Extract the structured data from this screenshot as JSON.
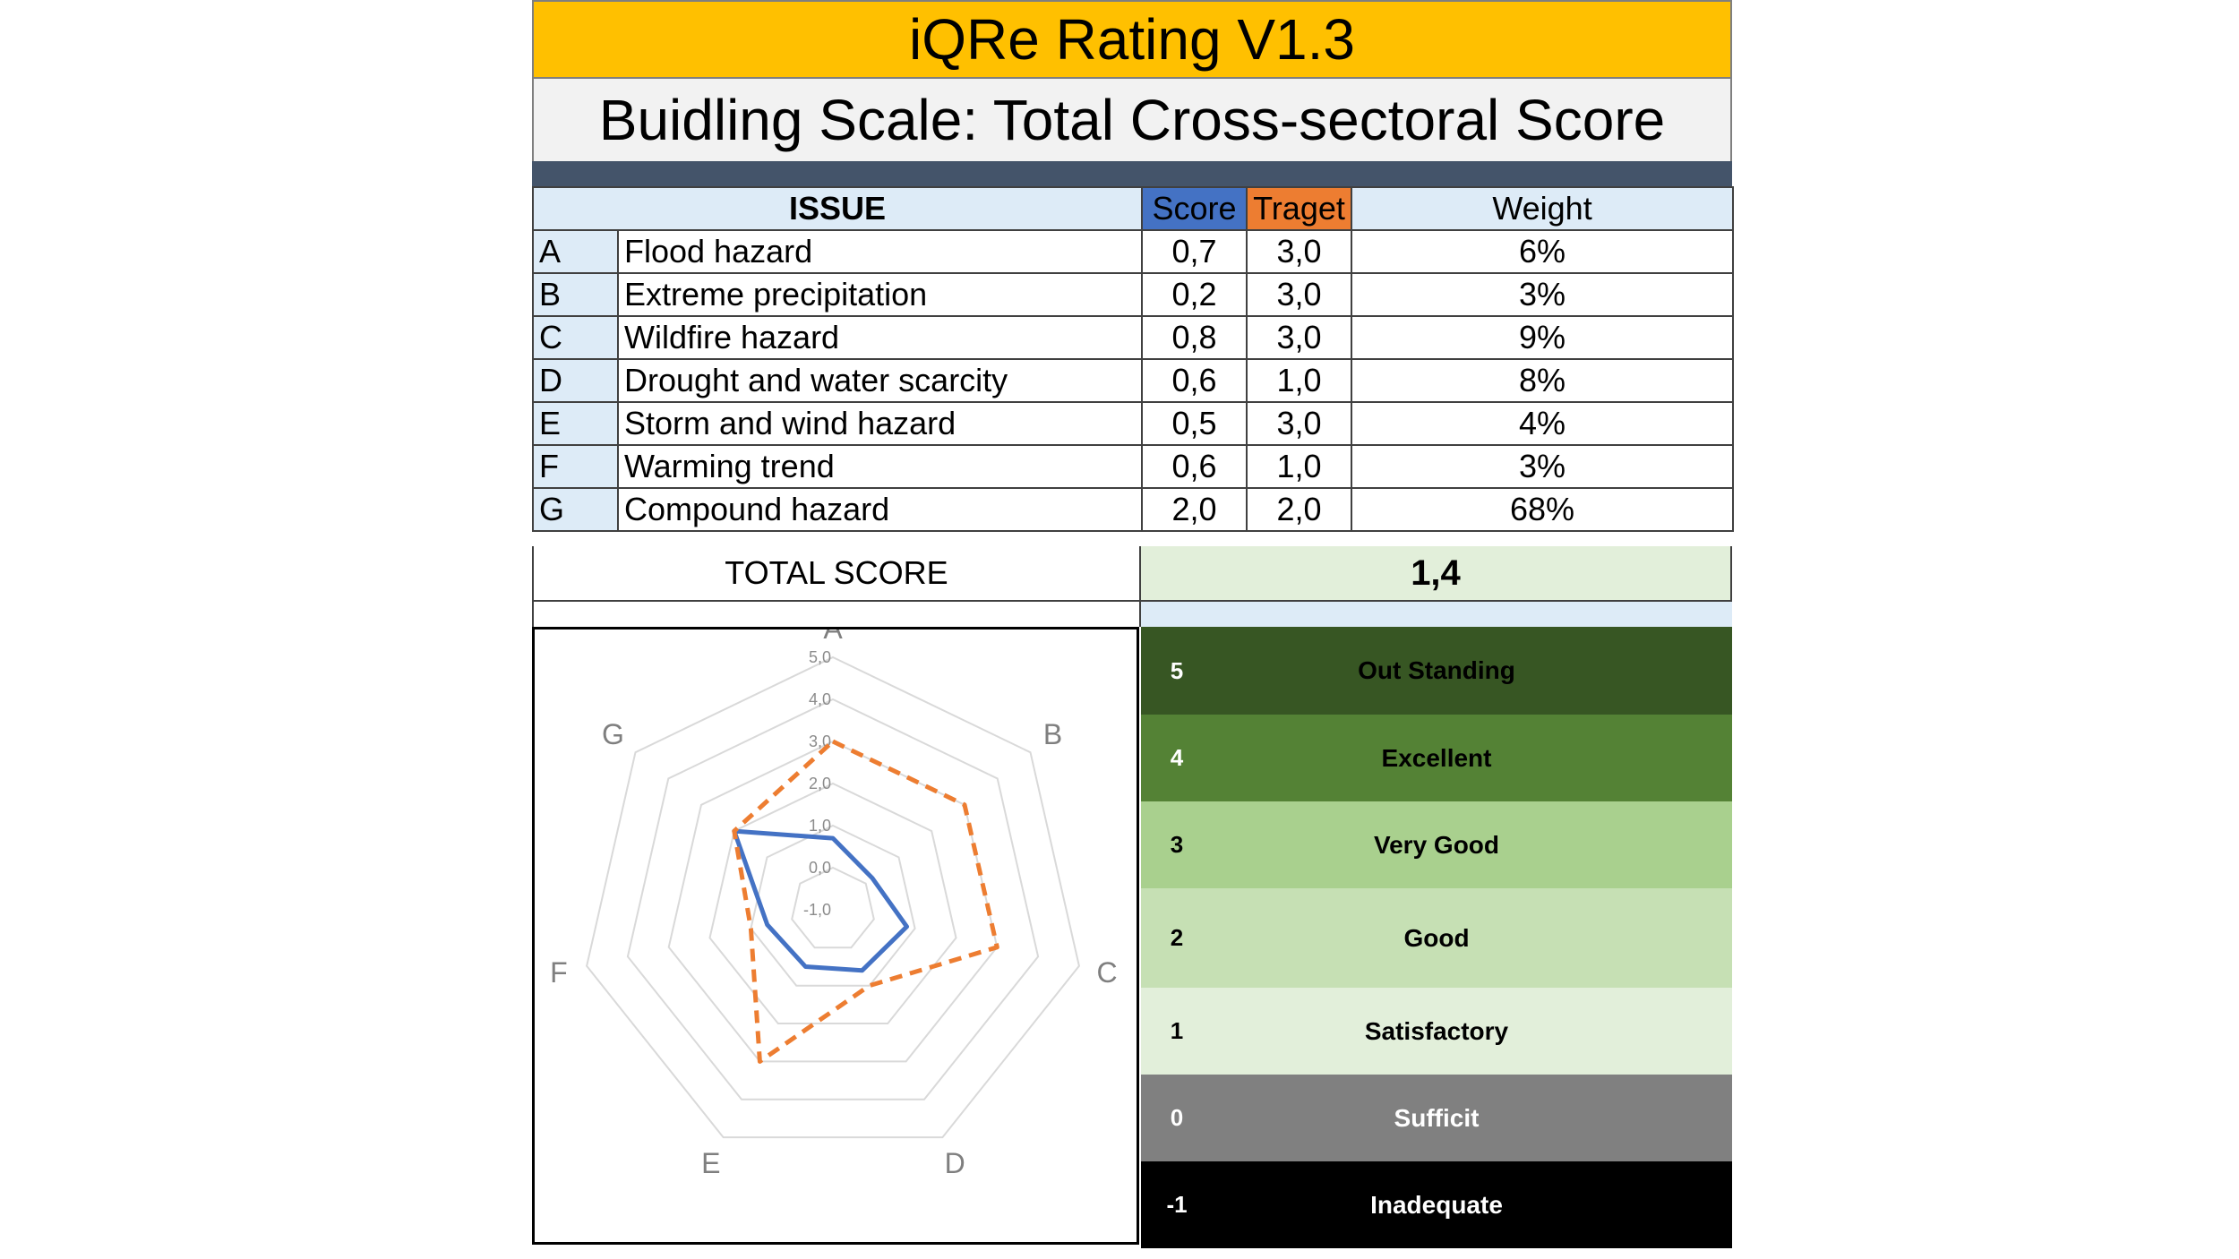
{
  "header": {
    "title": "iQRe Rating V1.3",
    "subtitle": "Buidling Scale: Total Cross-sectoral Score"
  },
  "table": {
    "headers": {
      "issue": "ISSUE",
      "score": "Score",
      "target": "Traget",
      "weight": "Weight"
    },
    "rows": [
      {
        "letter": "A",
        "label": "Flood hazard",
        "score": "0,7",
        "target": "3,0",
        "weight": "6%"
      },
      {
        "letter": "B",
        "label": "Extreme precipitation",
        "score": "0,2",
        "target": "3,0",
        "weight": "3%"
      },
      {
        "letter": "C",
        "label": "Wildfire  hazard",
        "score": "0,8",
        "target": "3,0",
        "weight": "9%"
      },
      {
        "letter": "D",
        "label": "Drought and water scarcity",
        "score": "0,6",
        "target": "1,0",
        "weight": "8%"
      },
      {
        "letter": "E",
        "label": "Storm and wind hazard",
        "score": "0,5",
        "target": "3,0",
        "weight": "4%"
      },
      {
        "letter": "F",
        "label": "Warming trend",
        "score": "0,6",
        "target": "1,0",
        "weight": "3%"
      },
      {
        "letter": "G",
        "label": "Compound hazard",
        "score": "2,0",
        "target": "2,0",
        "weight": "68%"
      }
    ],
    "total_label": "TOTAL SCORE",
    "total_value": "1,4"
  },
  "rating_scale": [
    {
      "value": "5",
      "label": "Out Standing",
      "bg": "#375623",
      "fg": "#ffffff",
      "label_fg": "#000000"
    },
    {
      "value": "4",
      "label": "Excellent",
      "bg": "#548235",
      "fg": "#ffffff",
      "label_fg": "#000000"
    },
    {
      "value": "3",
      "label": "Very Good",
      "bg": "#a9d08e",
      "fg": "#000000",
      "label_fg": "#000000"
    },
    {
      "value": "2",
      "label": "Good",
      "bg": "#c6e0b4",
      "fg": "#000000",
      "label_fg": "#000000"
    },
    {
      "value": "1",
      "label": "Satisfactory",
      "bg": "#e2efda",
      "fg": "#000000",
      "label_fg": "#000000"
    },
    {
      "value": "0",
      "label": "Sufficit",
      "bg": "#808080",
      "fg": "#ffffff",
      "label_fg": "#ffffff"
    },
    {
      "value": "-1",
      "label": "Inadequate",
      "bg": "#000000",
      "fg": "#ffffff",
      "label_fg": "#ffffff"
    }
  ],
  "chart_data": {
    "type": "radar",
    "categories": [
      "A",
      "B",
      "C",
      "D",
      "E",
      "F",
      "G"
    ],
    "range": [
      -1,
      5
    ],
    "ticks": [
      "-1,0",
      "0,0",
      "1,0",
      "2,0",
      "3,0",
      "4,0",
      "5,0"
    ],
    "grid": true,
    "legend": "none",
    "series": [
      {
        "key": "score",
        "values": [
          0.7,
          0.2,
          0.8,
          0.6,
          0.5,
          0.6,
          2.0
        ],
        "color": "#4472c4",
        "style": "solid"
      },
      {
        "key": "target",
        "values": [
          3.0,
          3.0,
          3.0,
          1.0,
          3.0,
          1.0,
          2.0
        ],
        "color": "#ed7d31",
        "style": "dashed"
      }
    ]
  }
}
